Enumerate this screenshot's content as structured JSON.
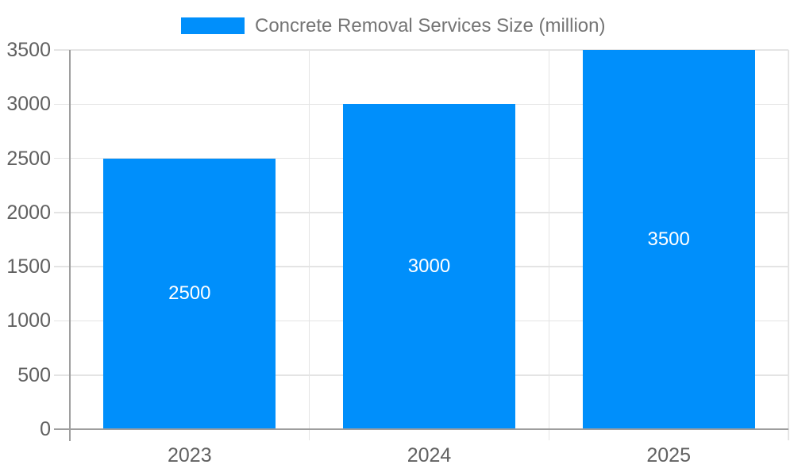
{
  "chart_data": {
    "type": "bar",
    "title": "Concrete Removal Services Size (million)",
    "categories": [
      "2023",
      "2024",
      "2025"
    ],
    "series": [
      {
        "name": "Concrete Removal Services Size (million)",
        "values": [
          2500,
          3000,
          3500
        ]
      }
    ],
    "bar_labels": [
      "2500",
      "3000",
      "3500"
    ],
    "xlabel": "",
    "ylabel": "",
    "ylim": [
      0,
      3500
    ],
    "yticks": [
      0,
      500,
      1000,
      1500,
      2000,
      2500,
      3000,
      3500
    ],
    "grid": true,
    "legend_position": "top-center",
    "colors": {
      "bar": "#008ffb",
      "gridline": "#e4e4e4",
      "axis_line": "#9e9e9e",
      "axis_text": "#616161",
      "legend_text": "#757575",
      "bar_label_text": "#ffffff",
      "background": "#ffffff"
    }
  }
}
